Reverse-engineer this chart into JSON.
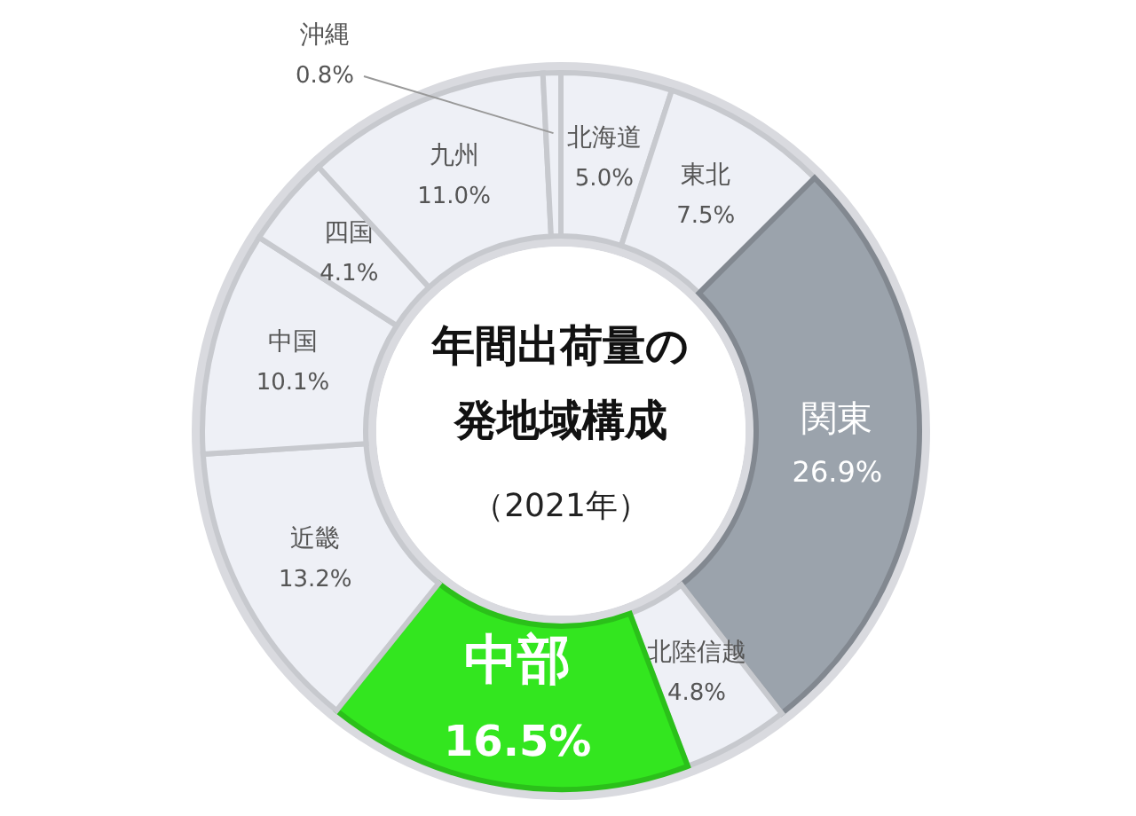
{
  "chart_data": {
    "type": "donut",
    "title": "年間出荷量の発地域構成",
    "subtitle": "（2021年）",
    "categories": [
      "北海道",
      "東北",
      "関東",
      "北陸信越",
      "中部",
      "近畿",
      "中国",
      "四国",
      "九州",
      "沖縄"
    ],
    "values": [
      5.0,
      7.5,
      26.9,
      4.8,
      16.5,
      13.2,
      10.1,
      4.1,
      11.0,
      0.8
    ],
    "value_labels": [
      "5.0%",
      "7.5%",
      "26.9%",
      "4.8%",
      "16.5%",
      "13.2%",
      "10.1%",
      "4.1%",
      "11.0%",
      "0.8%"
    ],
    "colors": [
      "#eef0f6",
      "#eef0f6",
      "#9ba3ac",
      "#eef0f6",
      "#33e61f",
      "#eef0f6",
      "#eef0f6",
      "#eef0f6",
      "#eef0f6",
      "#eef0f6"
    ]
  }
}
